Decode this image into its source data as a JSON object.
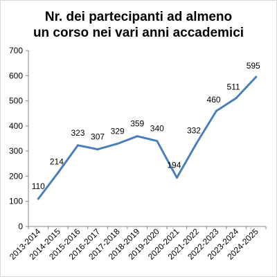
{
  "chart_data": {
    "type": "line",
    "title_lines": [
      "Nr. dei partecipanti ad almeno",
      "un corso nei vari anni accademici"
    ],
    "categories": [
      "2013-2014",
      "2014-2015",
      "2015-2016",
      "2016-2017",
      "2017-2018",
      "2018-2019",
      "2019-2020",
      "2020-2021",
      "2021-2022",
      "2022-2023",
      "2023-2024",
      "2024-2025"
    ],
    "series": [
      {
        "values": [
          110,
          214,
          323,
          307,
          329,
          359,
          340,
          194,
          332,
          460,
          511,
          595
        ]
      }
    ],
    "data_labels": [
      "110",
      "214",
      "323",
      "307",
      "329",
      "359",
      "340",
      "194",
      "332",
      "460",
      "511",
      "595"
    ],
    "y_ticks": [
      "0",
      "100",
      "200",
      "300",
      "400",
      "500",
      "600",
      "700"
    ],
    "ylim": [
      0,
      700
    ],
    "grid": false,
    "legend": "none",
    "colors": {
      "line": "#4a7ebb",
      "axis": "#878787"
    }
  }
}
